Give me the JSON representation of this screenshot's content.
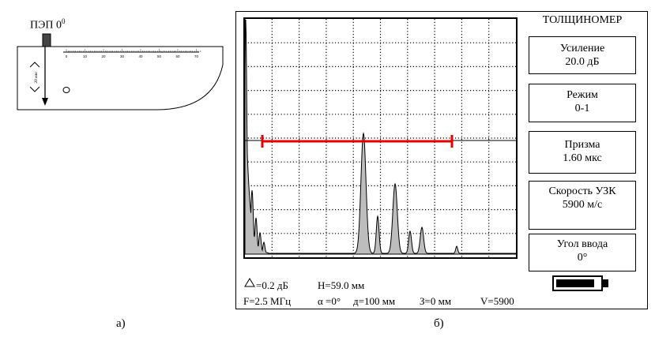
{
  "part_a": {
    "probe_label": "ПЭП 0",
    "probe_label_sup": "0",
    "scale_ticks": [
      "0",
      "10",
      "20",
      "30",
      "40",
      "50",
      "60",
      "70"
    ],
    "depth_label": "20 мкс",
    "caption": "а)"
  },
  "device": {
    "mode_title": "ТОЛЩИНОМЕР",
    "settings": [
      {
        "name": "Усиление",
        "value": "20.0 дБ"
      },
      {
        "name": "Режим",
        "value": "0-1"
      },
      {
        "name": "Призма",
        "value": "1.60 мкс"
      },
      {
        "name": "Скорость УЗК",
        "value": "5900 м/с"
      },
      {
        "name": "Угол ввода",
        "value": "0°"
      }
    ],
    "status": {
      "delta_db": "=0.2 дБ",
      "h": "H=59.0 мм",
      "f": "F=2.5 МГц",
      "alpha": "α =0°",
      "d": "д=100 мм",
      "z": "З=0 мм",
      "v": "V=5900"
    },
    "battery_level": 0.88,
    "caption": "б)"
  },
  "colors": {
    "gate": "#e60000",
    "echo_fill": "#bdbdbd",
    "grid": "#000000"
  }
}
